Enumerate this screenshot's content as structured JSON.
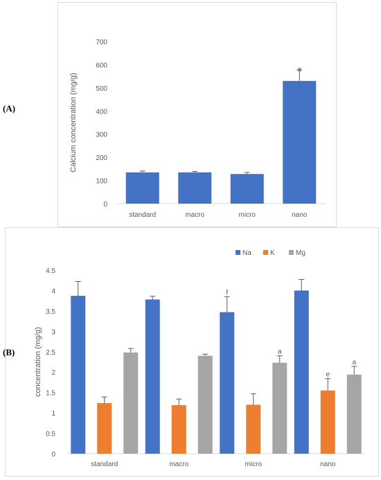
{
  "panels": {
    "a_label": "(A)",
    "b_label": "(B)"
  },
  "colors": {
    "calcium": "#4472c4",
    "na": "#4472c4",
    "k": "#ed7d31",
    "mg": "#a5a5a5",
    "axis": "#d9d9d9",
    "error": "#595959"
  },
  "chart_data": [
    {
      "type": "bar",
      "title": "",
      "xlabel": "",
      "ylabel": "Calcium concentration (mg/g)",
      "ylim": [
        0,
        700
      ],
      "yticks": [
        0,
        100,
        200,
        300,
        400,
        500,
        600,
        700
      ],
      "categories": [
        "standard",
        "macro",
        "micro",
        "nano"
      ],
      "series": [
        {
          "values": [
            135,
            135,
            128,
            530
          ],
          "errors": [
            6,
            4,
            7,
            48
          ],
          "annotations": [
            "",
            "",
            "",
            "a"
          ]
        }
      ],
      "grid": false,
      "legend": "none"
    },
    {
      "type": "bar",
      "title": "",
      "xlabel": "",
      "ylabel": "concentration (mg/g)",
      "ylim": [
        0,
        4.5
      ],
      "yticks": [
        0,
        0.5,
        1,
        1.5,
        2,
        2.5,
        3,
        3.5,
        4,
        4.5
      ],
      "categories": [
        "standard",
        "macro",
        "micro",
        "nano"
      ],
      "series": [
        {
          "name": "Na",
          "values": [
            3.87,
            3.78,
            3.47,
            4.0
          ],
          "errors": [
            0.35,
            0.08,
            0.38,
            0.27
          ],
          "annotations": [
            "",
            "",
            "f",
            ""
          ]
        },
        {
          "name": "K",
          "values": [
            1.24,
            1.19,
            1.2,
            1.55
          ],
          "errors": [
            0.15,
            0.15,
            0.27,
            0.29
          ],
          "annotations": [
            "",
            "",
            "",
            "e"
          ]
        },
        {
          "name": "Mg",
          "values": [
            2.48,
            2.4,
            2.23,
            1.94
          ],
          "errors": [
            0.1,
            0.04,
            0.17,
            0.2
          ],
          "annotations": [
            "",
            "",
            "a",
            "a"
          ]
        }
      ],
      "grid": false,
      "legend": "top-right"
    }
  ]
}
